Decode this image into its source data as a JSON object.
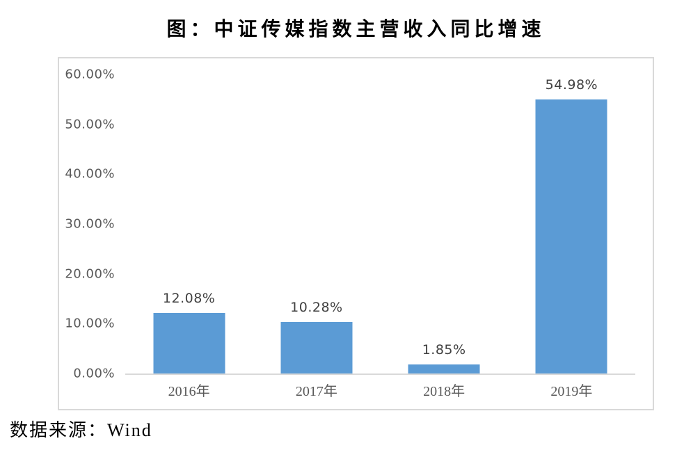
{
  "title": "图：中证传媒指数主营收入同比增速",
  "source_note": "数据来源：Wind",
  "colors": {
    "bar": "#5B9BD5",
    "axis_text": "#595959",
    "data_label_text": "#404040",
    "frame_border": "#D9D9D9",
    "title_text": "#000000"
  },
  "chart_data": {
    "type": "bar",
    "title": "图：中证传媒指数主营收入同比增速",
    "categories": [
      "2016年",
      "2017年",
      "2018年",
      "2019年"
    ],
    "values": [
      12.08,
      10.28,
      1.85,
      54.98
    ],
    "value_labels": [
      "12.08%",
      "10.28%",
      "1.85%",
      "54.98%"
    ],
    "unit": "%",
    "xlabel": "",
    "ylabel": "",
    "ylim": [
      0,
      60
    ],
    "ytick_step": 10,
    "ytick_labels": [
      "0.00%",
      "10.00%",
      "20.00%",
      "30.00%",
      "40.00%",
      "50.00%",
      "60.00%"
    ],
    "grid": false,
    "legend_position": "none",
    "bar_color": "#5B9BD5"
  }
}
